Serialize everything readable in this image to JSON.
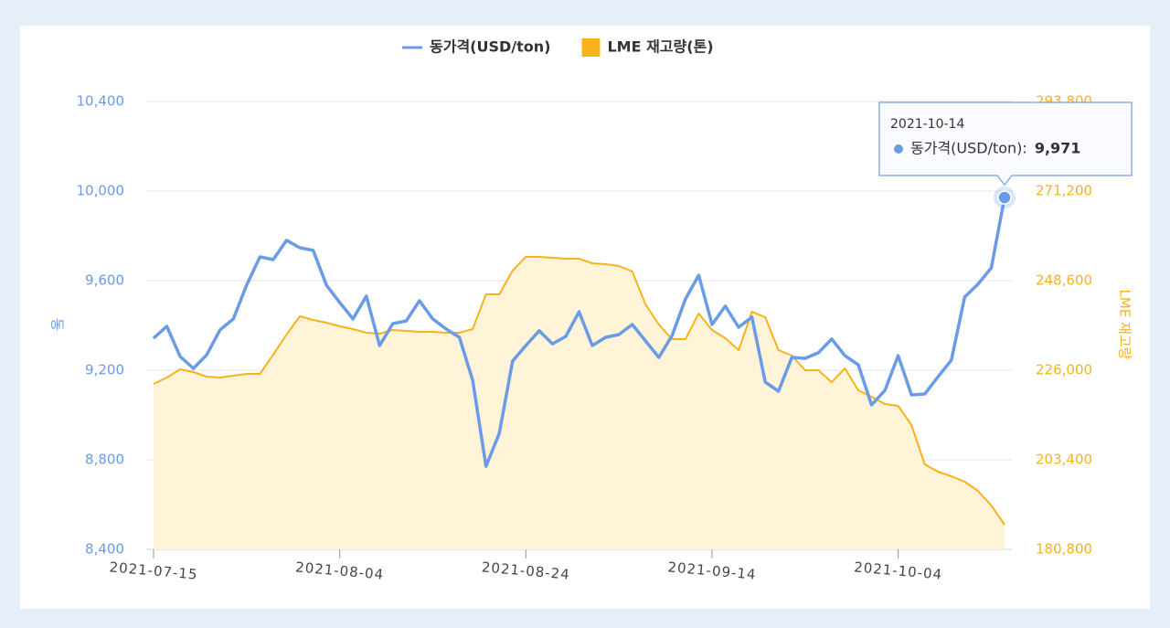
{
  "chart_data": {
    "type": "line",
    "y_label": "동",
    "y2_label": "LME 재고량",
    "categories": [
      "2021-07-15",
      null,
      null,
      null,
      null,
      null,
      null,
      null,
      null,
      null,
      null,
      null,
      null,
      null,
      "2021-08-04",
      null,
      null,
      null,
      null,
      null,
      null,
      null,
      null,
      null,
      null,
      null,
      null,
      null,
      "2021-08-24",
      null,
      null,
      null,
      null,
      null,
      null,
      null,
      null,
      null,
      null,
      null,
      null,
      null,
      "2021-09-14",
      null,
      null,
      null,
      null,
      null,
      null,
      null,
      null,
      null,
      null,
      null,
      null,
      null,
      "2021-10-04",
      null,
      null,
      null,
      null,
      null,
      null,
      null,
      null
    ],
    "series": [
      {
        "name": "동가격(USD/ton)",
        "color": "#6a9be6",
        "values": [
          9343,
          9396,
          9261,
          9208,
          9269,
          9380,
          9429,
          9580,
          9706,
          9694,
          9780,
          9747,
          9735,
          9580,
          9502,
          9429,
          9531,
          9310,
          9408,
          9420,
          9510,
          9429,
          9384,
          9347,
          9155,
          8771,
          8918,
          9241,
          9310,
          9376,
          9318,
          9351,
          9461,
          9310,
          9347,
          9359,
          9404,
          9331,
          9257,
          9355,
          9518,
          9624,
          9404,
          9486,
          9392,
          9437,
          9147,
          9106,
          9257,
          9253,
          9278,
          9339,
          9265,
          9224,
          9045,
          9110,
          9265,
          9090,
          9094,
          9171,
          9245,
          9527,
          9584,
          9657,
          9971
        ]
      },
      {
        "name": "LME 재고량(톤)",
        "color": "#f8b31c",
        "fill": "#fff3d8",
        "axis": "y2",
        "values": [
          222540,
          224150,
          226230,
          225540,
          224380,
          224150,
          224610,
          225080,
          225080,
          229920,
          234990,
          239600,
          238680,
          237990,
          237060,
          236370,
          235450,
          235220,
          236140,
          235910,
          235680,
          235680,
          235450,
          235450,
          236370,
          245140,
          245140,
          251130,
          254590,
          254590,
          254360,
          254130,
          254130,
          252980,
          252750,
          252290,
          250900,
          242600,
          237530,
          233840,
          233840,
          240300,
          236140,
          234060,
          231070,
          240760,
          239370,
          231070,
          229690,
          225990,
          225990,
          222990,
          226460,
          220920,
          219310,
          217460,
          217000,
          212160,
          202250,
          200400,
          199250,
          197860,
          195560,
          191870,
          187030
        ]
      }
    ],
    "ylim": [
      8400,
      10400
    ],
    "yticks": [
      {
        "value": 8400,
        "label": "8,400"
      },
      {
        "value": 8800,
        "label": "8,800"
      },
      {
        "value": 9200,
        "label": "9,200"
      },
      {
        "value": 9600,
        "label": "9,600"
      },
      {
        "value": 10000,
        "label": "10,000"
      },
      {
        "value": 10400,
        "label": "10,400"
      }
    ],
    "y2lim": [
      180800,
      293800
    ],
    "y2ticks": [
      {
        "value": 180800,
        "label": "180,800"
      },
      {
        "value": 203400,
        "label": "203,400"
      },
      {
        "value": 226000,
        "label": "226,000"
      },
      {
        "value": 248600,
        "label": "248,600"
      },
      {
        "value": 271200,
        "label": "271,200"
      },
      {
        "value": 293800,
        "label": "293,800"
      }
    ],
    "grid": true,
    "tooltip": {
      "date": "2021-10-14",
      "series_label": "동가격(USD/ton):",
      "value_label": "9,971",
      "index": 64
    }
  }
}
